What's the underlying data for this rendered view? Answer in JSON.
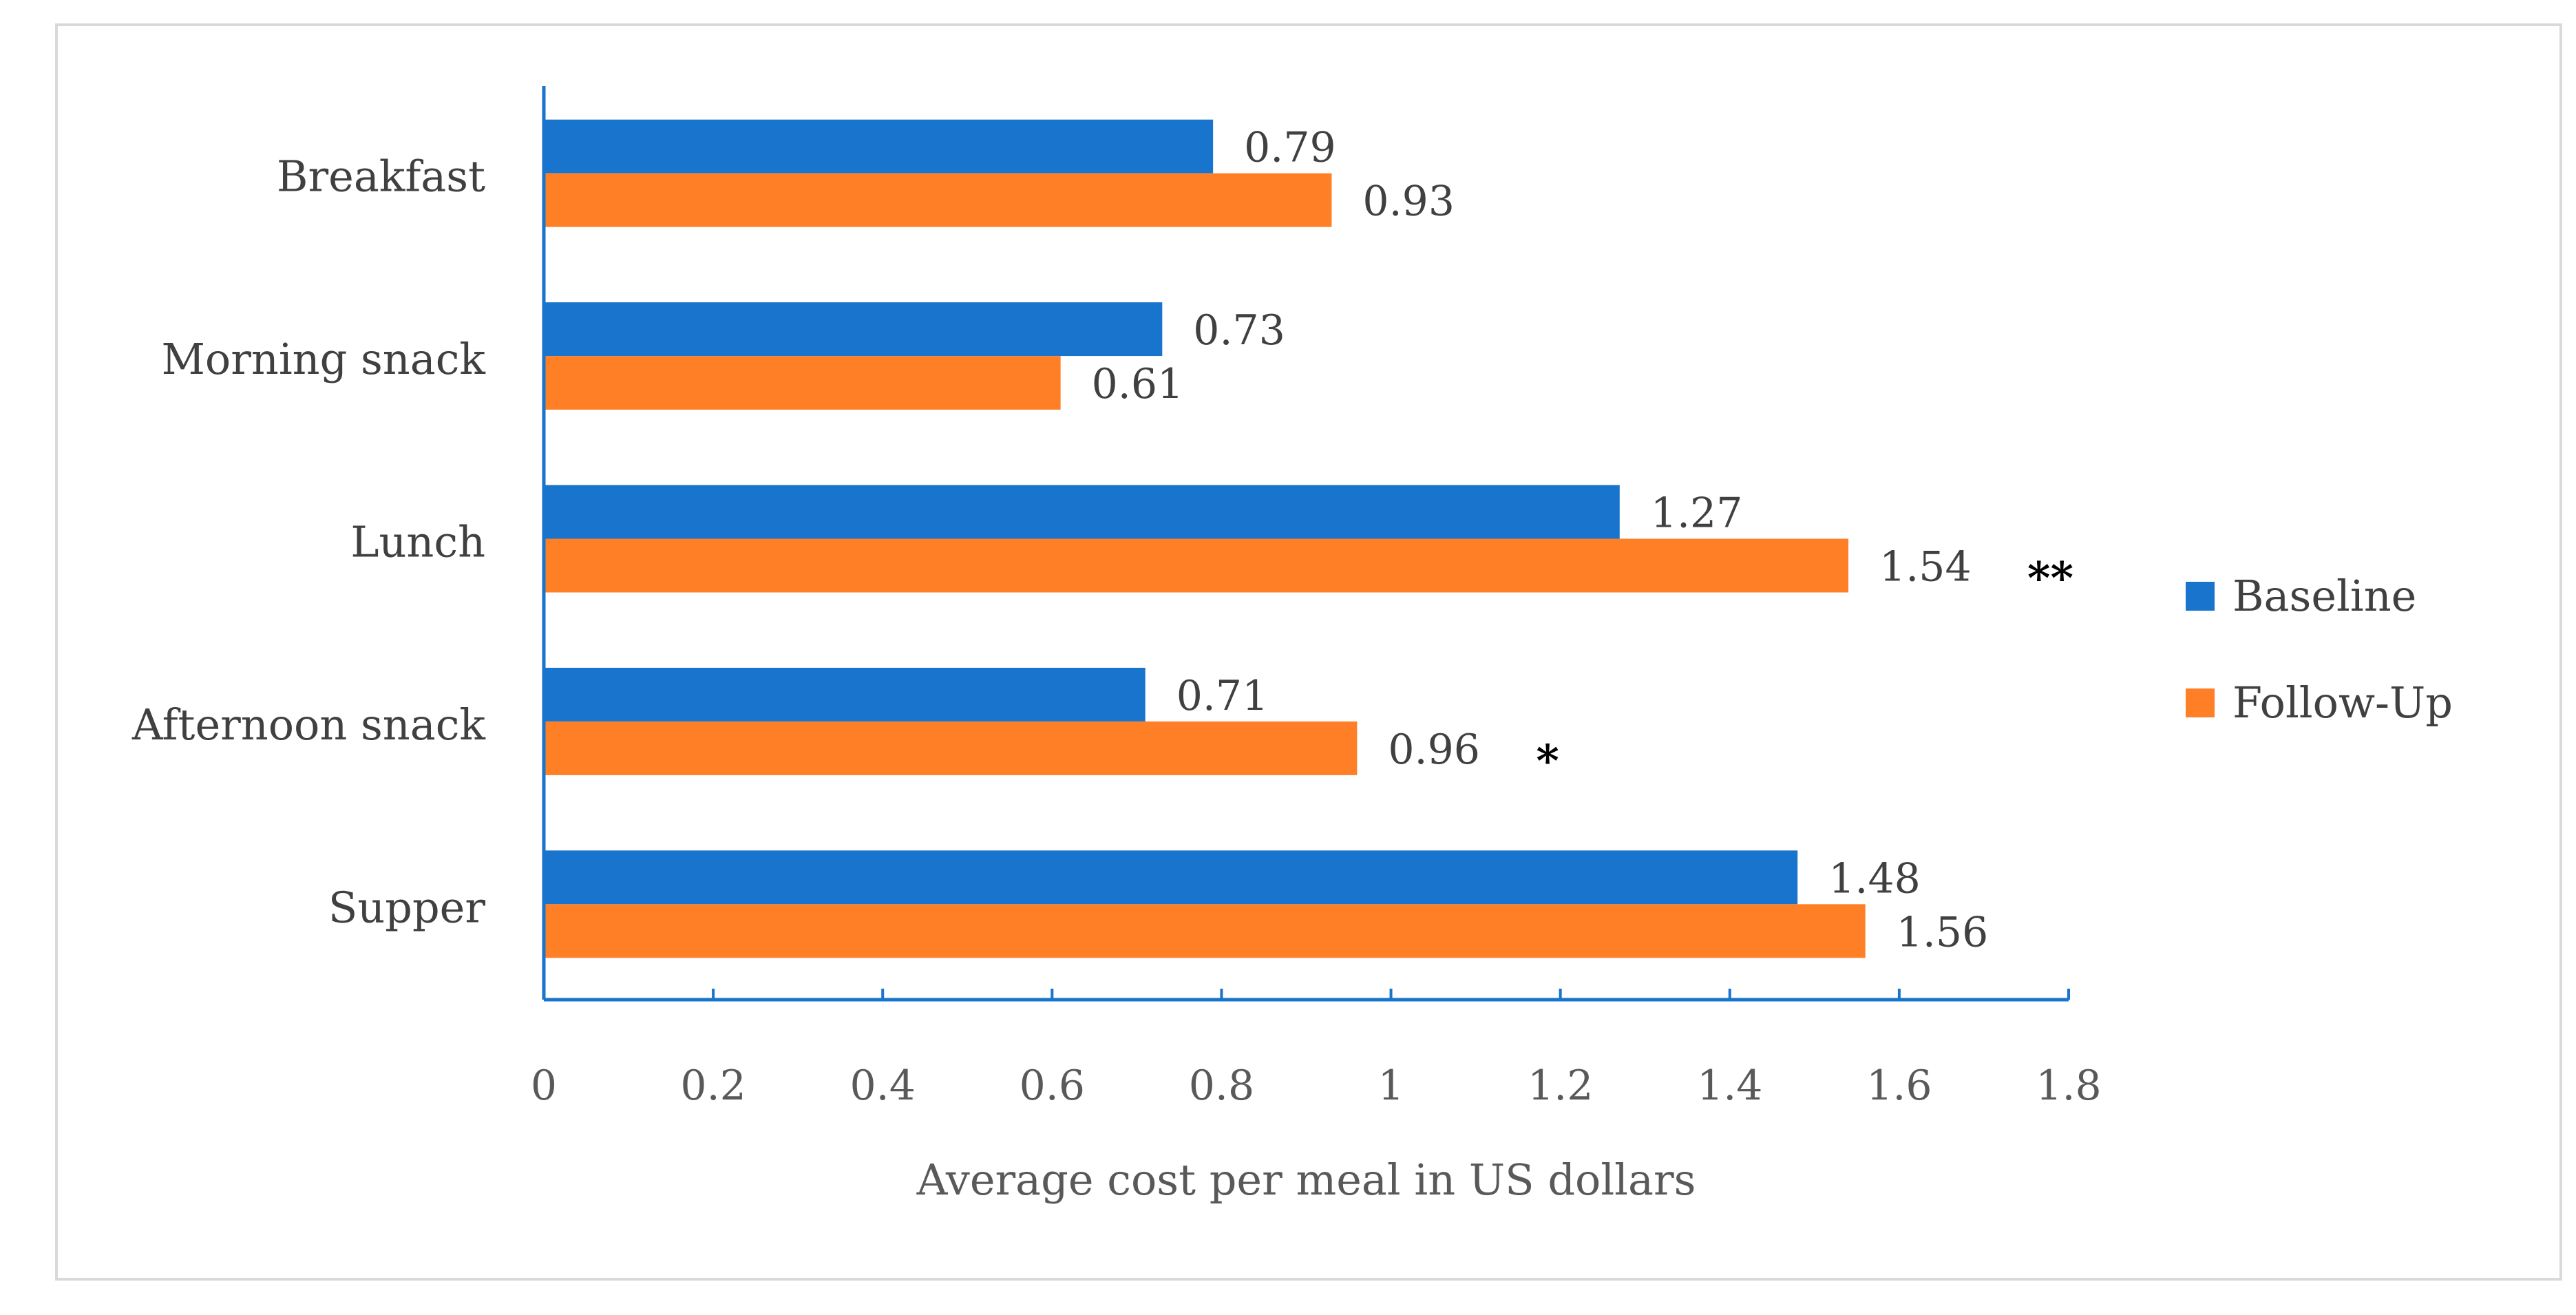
{
  "chart_data": {
    "type": "bar",
    "orientation": "horizontal",
    "categories": [
      "Breakfast",
      "Morning snack",
      "Lunch",
      "Afternoon snack",
      "Supper"
    ],
    "series": [
      {
        "name": "Baseline",
        "color": "#1874CD",
        "values": [
          0.79,
          0.73,
          1.27,
          0.71,
          1.48
        ]
      },
      {
        "name": "Follow-Up",
        "color": "#FF7F27",
        "values": [
          0.93,
          0.61,
          1.54,
          0.96,
          1.56
        ]
      }
    ],
    "value_labels": {
      "Baseline": [
        "0.79",
        "0.73",
        "1.27",
        "0.71",
        "1.48"
      ],
      "Follow-Up": [
        "0.93",
        "0.61",
        "1.54",
        "0.96",
        "1.56"
      ]
    },
    "significance": [
      "",
      "",
      "**",
      "*",
      ""
    ],
    "xlabel": "Average cost per meal in US dollars",
    "ylabel": "",
    "xlim": [
      0,
      1.8
    ],
    "xticks": [
      0,
      0.2,
      0.4,
      0.6,
      0.8,
      1,
      1.2,
      1.4,
      1.6,
      1.8
    ],
    "xtick_labels": [
      "0",
      "0.2",
      "0.4",
      "0.6",
      "0.8",
      "1",
      "1.2",
      "1.4",
      "1.6",
      "1.8"
    ],
    "grid": false,
    "legend_position": "right",
    "axis_color": "#1874CD",
    "frame_color": "#D9D9D9"
  }
}
